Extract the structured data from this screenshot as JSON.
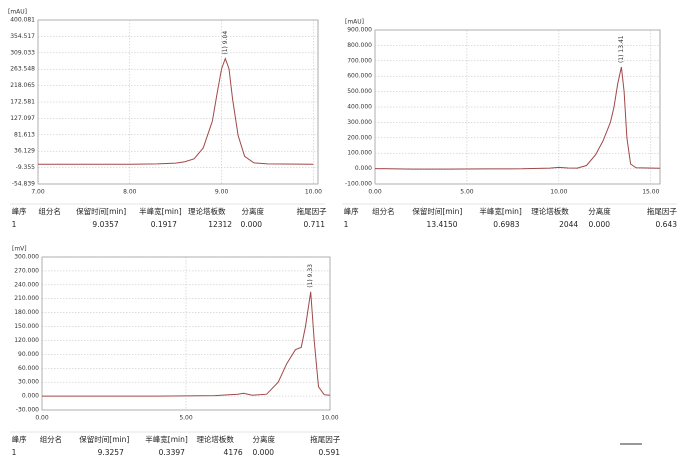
{
  "chart_data": [
    {
      "type": "line",
      "ylabel": "[mAU]",
      "annotations": [
        "(1) 9.04"
      ],
      "color": "#a04848",
      "grid": true,
      "x": [
        7.0,
        8.0,
        8.3,
        8.5,
        8.6,
        8.7,
        8.8,
        8.9,
        8.95,
        9.0,
        9.04,
        9.08,
        9.12,
        9.18,
        9.25,
        9.35,
        9.5,
        10.0
      ],
      "values": [
        0,
        0,
        1,
        3,
        7,
        15,
        45,
        120,
        195,
        265,
        293,
        265,
        180,
        80,
        22,
        4,
        1,
        0
      ],
      "xlim": [
        7,
        10.05
      ],
      "xticks": [
        {
          "value": 7,
          "label": "7.00"
        },
        {
          "value": 8,
          "label": "8.00"
        },
        {
          "value": 9,
          "label": "9.00"
        },
        {
          "value": 10,
          "label": "10.00"
        }
      ],
      "ylim": [
        -54.839,
        400.081
      ],
      "yticks": [
        400.081,
        354.517,
        309.033,
        263.548,
        218.065,
        172.581,
        127.097,
        81.613,
        36.129,
        -9.355,
        -54.839
      ],
      "table": {
        "columns": [
          "峰序",
          "组分名",
          "保留时间[min]",
          "半峰宽[min]",
          "理论塔板数",
          "分离度",
          "拖尾因子"
        ],
        "rows": [
          [
            "1",
            null,
            "9.0357",
            "0.1917",
            "12312",
            "0.000",
            "0.711"
          ]
        ]
      }
    },
    {
      "type": "line",
      "ylabel": "[mAU]",
      "annotations": [
        "(1) 13.41"
      ],
      "color": "#a04848",
      "grid": true,
      "x": [
        0,
        2,
        4,
        6,
        8,
        9.5,
        10,
        10.5,
        11,
        11.5,
        12,
        12.4,
        12.8,
        13.0,
        13.2,
        13.4,
        13.55,
        13.7,
        13.9,
        14.2,
        15.5
      ],
      "values": [
        0,
        -3,
        -3,
        -2,
        -1,
        3,
        8,
        4,
        3,
        20,
        90,
        180,
        300,
        400,
        550,
        660,
        500,
        200,
        30,
        5,
        2
      ],
      "xlim": [
        0,
        15.5
      ],
      "xticks": [
        {
          "value": 0,
          "label": "0.00"
        },
        {
          "value": 5,
          "label": "5.00"
        },
        {
          "value": 10,
          "label": "10.00"
        },
        {
          "value": 15,
          "label": "15.00"
        }
      ],
      "ylim": [
        -100,
        900
      ],
      "yticks": [
        {
          "value": 900,
          "label": "900.000"
        },
        {
          "value": 800,
          "label": "800.000"
        },
        {
          "value": 700,
          "label": "700.000"
        },
        {
          "value": 600,
          "label": "600.000"
        },
        {
          "value": 500,
          "label": "500.000"
        },
        {
          "value": 400,
          "label": "400.000"
        },
        {
          "value": 300,
          "label": "300.000"
        },
        {
          "value": 200,
          "label": "200.000"
        },
        {
          "value": 100,
          "label": "100.000"
        },
        {
          "value": 0,
          "label": "0.000"
        },
        {
          "value": -100,
          "label": "-100.000"
        }
      ],
      "table": {
        "columns": [
          "峰序",
          "组分名",
          "保留时间[min]",
          "半峰宽[min]",
          "理论塔板数",
          "分离度",
          "拖尾因子"
        ],
        "rows": [
          [
            "1",
            null,
            "13.4150",
            "0.6983",
            "2044",
            "0.000",
            "0.643"
          ]
        ]
      }
    },
    {
      "type": "line",
      "ylabel": "[mV]",
      "annotations": [
        "(1) 9.33"
      ],
      "color": "#a04848",
      "grid": true,
      "x": [
        0,
        2,
        4,
        6,
        6.8,
        7.0,
        7.3,
        7.8,
        8.2,
        8.5,
        8.8,
        9.0,
        9.15,
        9.33,
        9.45,
        9.6,
        9.8,
        10.0
      ],
      "values": [
        0,
        0,
        0,
        1,
        4,
        6,
        2,
        4,
        30,
        70,
        100,
        105,
        150,
        225,
        120,
        20,
        3,
        2
      ],
      "xlim": [
        0,
        10
      ],
      "xticks": [
        {
          "value": 0,
          "label": "0.00"
        },
        {
          "value": 5,
          "label": "5.00"
        },
        {
          "value": 10,
          "label": "10.00"
        }
      ],
      "ylim": [
        -30,
        300
      ],
      "yticks": [
        {
          "value": 300,
          "label": "300.000"
        },
        {
          "value": 270,
          "label": "270.000"
        },
        {
          "value": 240,
          "label": "240.000"
        },
        {
          "value": 210,
          "label": "210.000"
        },
        {
          "value": 180,
          "label": "180.000"
        },
        {
          "value": 150,
          "label": "150.000"
        },
        {
          "value": 120,
          "label": "120.000"
        },
        {
          "value": 90,
          "label": "90.000"
        },
        {
          "value": 60,
          "label": "60.000"
        },
        {
          "value": 30,
          "label": "30.000"
        },
        {
          "value": 0,
          "label": "0.000"
        },
        {
          "value": -30,
          "label": "-30.000"
        }
      ],
      "table": {
        "columns": [
          "峰序",
          "组分名",
          "保留时间[min]",
          "半峰宽[min]",
          "理论塔板数",
          "分离度",
          "拖尾因子"
        ],
        "rows": [
          [
            "1",
            null,
            "9.3257",
            "0.3397",
            "4176",
            "0.000",
            "0.591"
          ]
        ]
      }
    }
  ]
}
